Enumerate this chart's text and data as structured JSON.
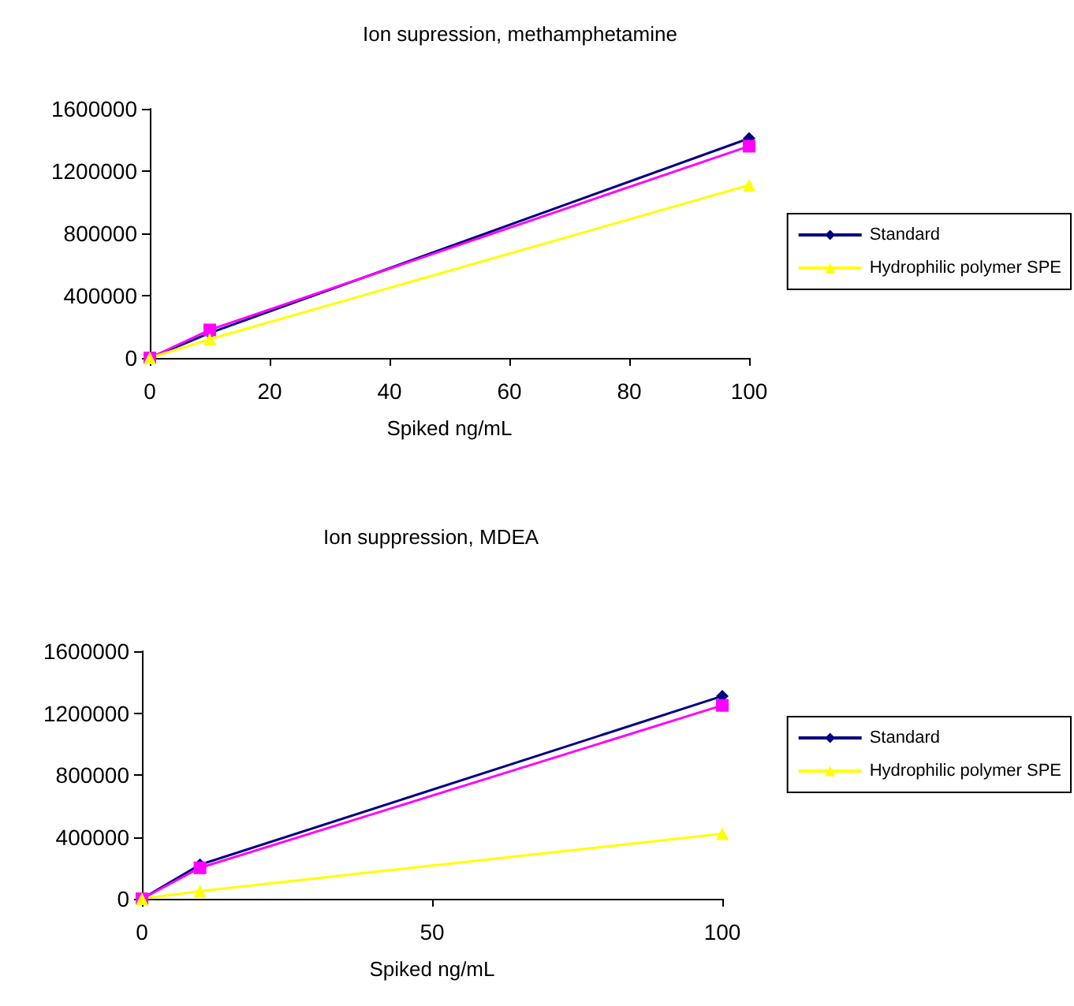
{
  "chart_data": [
    {
      "type": "line",
      "title": "Ion supression, methamphetamine",
      "xlabel": "Spiked ng/mL",
      "x": [
        0,
        10,
        100
      ],
      "xlim": [
        0,
        100
      ],
      "xticks": [
        0,
        20,
        40,
        60,
        80,
        100
      ],
      "ylim": [
        0,
        1600000
      ],
      "yticks": [
        0,
        400000,
        800000,
        1200000,
        1600000
      ],
      "grid": false,
      "legend": "right",
      "line_style": "solid",
      "series": [
        {
          "name": "Standard",
          "color": "#000080",
          "marker": "diamond",
          "values": [
            0,
            160000,
            1410000
          ]
        },
        {
          "color": "#ff00ff",
          "marker": "square",
          "values": [
            0,
            180000,
            1360000
          ]
        },
        {
          "name": "Hydrophilic polymer SPE",
          "color": "#ffff00",
          "marker": "triangle",
          "values": [
            0,
            120000,
            1110000
          ]
        }
      ]
    },
    {
      "type": "line",
      "title": "Ion suppression, MDEA",
      "xlabel": "Spiked ng/mL",
      "x": [
        0,
        10,
        100
      ],
      "xlim": [
        0,
        100
      ],
      "xticks": [
        0,
        50,
        100
      ],
      "ylim": [
        0,
        1600000
      ],
      "yticks": [
        0,
        400000,
        800000,
        1200000,
        1600000
      ],
      "grid": false,
      "legend": "right",
      "line_style": "solid",
      "series": [
        {
          "name": "Standard",
          "color": "#000080",
          "marker": "diamond",
          "values": [
            0,
            220000,
            1310000
          ]
        },
        {
          "color": "#ff00ff",
          "marker": "square",
          "values": [
            0,
            200000,
            1250000
          ]
        },
        {
          "name": "Hydrophilic polymer SPE",
          "color": "#ffff00",
          "marker": "triangle",
          "values": [
            0,
            50000,
            420000
          ]
        }
      ]
    }
  ]
}
